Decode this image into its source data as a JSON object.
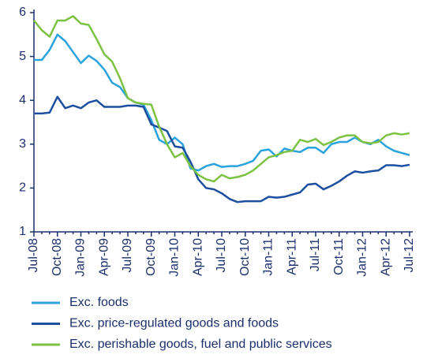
{
  "chart_data": {
    "type": "line",
    "categories": [
      "Jul-08",
      null,
      null,
      "Oct-08",
      null,
      null,
      "Jan-09",
      null,
      null,
      "Apr-09",
      null,
      null,
      "Jul-09",
      null,
      null,
      "Oct-09",
      null,
      null,
      "Jan-10",
      null,
      null,
      "Apr-10",
      null,
      null,
      "Jul-10",
      null,
      null,
      "Oct-10",
      null,
      null,
      "Jan-11",
      null,
      null,
      "Apr-11",
      null,
      null,
      "Jul-11",
      null,
      null,
      "Oct-11",
      null,
      null,
      "Jan-12",
      null,
      null,
      "Apr-12",
      null,
      null,
      "Jul-12"
    ],
    "series": [
      {
        "name": "Exc. foods",
        "color": "#2aa3dc",
        "values": [
          4.92,
          4.92,
          5.15,
          5.5,
          5.35,
          5.1,
          4.85,
          5.02,
          4.9,
          4.7,
          4.4,
          4.3,
          4.05,
          3.95,
          3.9,
          3.55,
          3.1,
          3.0,
          3.15,
          3.0,
          2.45,
          2.4,
          2.5,
          2.55,
          2.48,
          2.5,
          2.5,
          2.55,
          2.62,
          2.85,
          2.88,
          2.72,
          2.9,
          2.85,
          2.82,
          2.92,
          2.92,
          2.8,
          3.0,
          3.05,
          3.05,
          3.15,
          3.05,
          3.0,
          3.1,
          2.95,
          2.85,
          2.8,
          2.75
        ]
      },
      {
        "name": "Exc. price-regulated goods and foods",
        "color": "#1d4fa0",
        "values": [
          3.7,
          3.7,
          3.72,
          4.08,
          3.82,
          3.88,
          3.82,
          3.95,
          4.0,
          3.85,
          3.85,
          3.85,
          3.88,
          3.88,
          3.85,
          3.45,
          3.38,
          3.3,
          2.95,
          2.92,
          2.6,
          2.2,
          2.0,
          1.97,
          1.88,
          1.75,
          1.68,
          1.7,
          1.7,
          1.7,
          1.8,
          1.78,
          1.8,
          1.85,
          1.9,
          2.08,
          2.1,
          1.97,
          2.05,
          2.15,
          2.28,
          2.38,
          2.35,
          2.38,
          2.4,
          2.52,
          2.52,
          2.5,
          2.53
        ]
      },
      {
        "name": "Exc. perishable goods, fuel and public services",
        "color": "#7cc242",
        "values": [
          5.82,
          5.6,
          5.45,
          5.82,
          5.82,
          5.92,
          5.75,
          5.72,
          5.4,
          5.05,
          4.88,
          4.5,
          4.05,
          3.95,
          3.92,
          3.9,
          3.4,
          3.0,
          2.7,
          2.8,
          2.5,
          2.3,
          2.2,
          2.15,
          2.3,
          2.22,
          2.25,
          2.3,
          2.4,
          2.55,
          2.7,
          2.75,
          2.82,
          2.85,
          3.1,
          3.05,
          3.12,
          2.98,
          3.05,
          3.15,
          3.2,
          3.2,
          3.05,
          3.02,
          3.05,
          3.2,
          3.25,
          3.22,
          3.25
        ]
      }
    ],
    "ylim": [
      1,
      6
    ],
    "yticks": [
      1,
      2,
      3,
      4,
      5,
      6
    ],
    "grid": false,
    "legend": "bottom"
  }
}
